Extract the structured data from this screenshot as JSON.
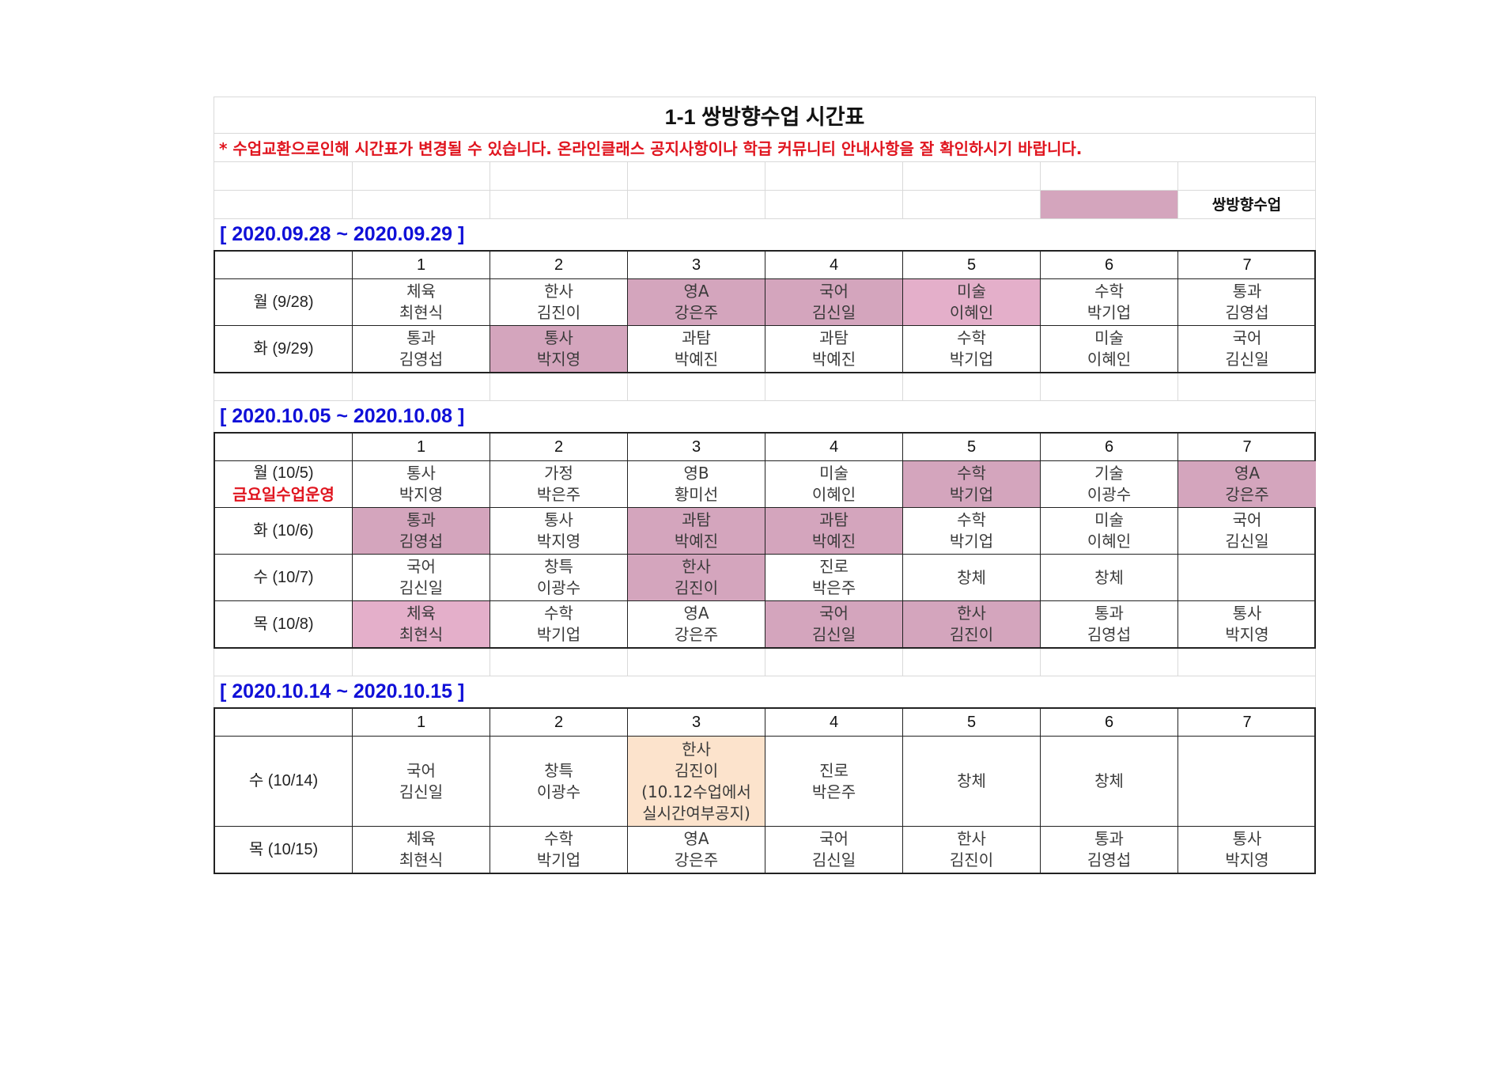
{
  "title": "1-1 쌍방향수업 시간표",
  "notice": "* 수업교환으로인해 시간표가 변경될 수 있습니다. 온라인클래스 공지사항이나 학급 커뮤니티 안내사항을 잘 확인하시기 바랍니다.",
  "legend": {
    "label": "쌍방향수업",
    "color": "#d4a5bd"
  },
  "periods": [
    "1",
    "2",
    "3",
    "4",
    "5",
    "6",
    "7"
  ],
  "weeks": [
    {
      "range": "[ 2020.09.28 ~ 2020.09.29 ]",
      "days": [
        {
          "day": "월 (9/28)",
          "note": "",
          "classes": [
            {
              "subject": "체육",
              "teacher": "최현식",
              "hl": ""
            },
            {
              "subject": "한사",
              "teacher": "김진이",
              "hl": ""
            },
            {
              "subject": "영A",
              "teacher": "강은주",
              "hl": "hl1"
            },
            {
              "subject": "국어",
              "teacher": "김신일",
              "hl": "hl1"
            },
            {
              "subject": "미술",
              "teacher": "이혜인",
              "hl": "hl2"
            },
            {
              "subject": "수학",
              "teacher": "박기업",
              "hl": ""
            },
            {
              "subject": "통과",
              "teacher": "김영섭",
              "hl": ""
            }
          ]
        },
        {
          "day": "화 (9/29)",
          "note": "",
          "classes": [
            {
              "subject": "통과",
              "teacher": "김영섭",
              "hl": ""
            },
            {
              "subject": "통사",
              "teacher": "박지영",
              "hl": "hl1"
            },
            {
              "subject": "과탐",
              "teacher": "박예진",
              "hl": ""
            },
            {
              "subject": "과탐",
              "teacher": "박예진",
              "hl": ""
            },
            {
              "subject": "수학",
              "teacher": "박기업",
              "hl": ""
            },
            {
              "subject": "미술",
              "teacher": "이혜인",
              "hl": ""
            },
            {
              "subject": "국어",
              "teacher": "김신일",
              "hl": ""
            }
          ]
        }
      ]
    },
    {
      "range": "[ 2020.10.05 ~ 2020.10.08 ]",
      "days": [
        {
          "day": "월 (10/5)",
          "note": "금요일수업운영",
          "classes": [
            {
              "subject": "통사",
              "teacher": "박지영",
              "hl": ""
            },
            {
              "subject": "가정",
              "teacher": "박은주",
              "hl": ""
            },
            {
              "subject": "영B",
              "teacher": "황미선",
              "hl": ""
            },
            {
              "subject": "미술",
              "teacher": "이혜인",
              "hl": ""
            },
            {
              "subject": "수학",
              "teacher": "박기업",
              "hl": "hl1"
            },
            {
              "subject": "기술",
              "teacher": "이광수",
              "hl": ""
            },
            {
              "subject": "영A",
              "teacher": "강은주",
              "hl": "hl1"
            }
          ]
        },
        {
          "day": "화 (10/6)",
          "note": "",
          "classes": [
            {
              "subject": "통과",
              "teacher": "김영섭",
              "hl": "hl1"
            },
            {
              "subject": "통사",
              "teacher": "박지영",
              "hl": ""
            },
            {
              "subject": "과탐",
              "teacher": "박예진",
              "hl": "hl1"
            },
            {
              "subject": "과탐",
              "teacher": "박예진",
              "hl": "hl1"
            },
            {
              "subject": "수학",
              "teacher": "박기업",
              "hl": ""
            },
            {
              "subject": "미술",
              "teacher": "이혜인",
              "hl": ""
            },
            {
              "subject": "국어",
              "teacher": "김신일",
              "hl": ""
            }
          ]
        },
        {
          "day": "수 (10/7)",
          "note": "",
          "classes": [
            {
              "subject": "국어",
              "teacher": "김신일",
              "hl": ""
            },
            {
              "subject": "창특",
              "teacher": "이광수",
              "hl": ""
            },
            {
              "subject": "한사",
              "teacher": "김진이",
              "hl": "hl1"
            },
            {
              "subject": "진로",
              "teacher": "박은주",
              "hl": ""
            },
            {
              "subject": "창체",
              "teacher": "",
              "hl": ""
            },
            {
              "subject": "창체",
              "teacher": "",
              "hl": ""
            },
            {
              "subject": "",
              "teacher": "",
              "hl": ""
            }
          ]
        },
        {
          "day": "목 (10/8)",
          "note": "",
          "classes": [
            {
              "subject": "체육",
              "teacher": "최현식",
              "hl": "hl2"
            },
            {
              "subject": "수학",
              "teacher": "박기업",
              "hl": ""
            },
            {
              "subject": "영A",
              "teacher": "강은주",
              "hl": ""
            },
            {
              "subject": "국어",
              "teacher": "김신일",
              "hl": "hl1"
            },
            {
              "subject": "한사",
              "teacher": "김진이",
              "hl": "hl1"
            },
            {
              "subject": "통과",
              "teacher": "김영섭",
              "hl": ""
            },
            {
              "subject": "통사",
              "teacher": "박지영",
              "hl": ""
            }
          ]
        }
      ]
    },
    {
      "range": "[ 2020.10.14 ~ 2020.10.15 ]",
      "days": [
        {
          "day": "수 (10/14)",
          "note": "",
          "tall": true,
          "classes": [
            {
              "subject": "국어",
              "teacher": "김신일",
              "hl": ""
            },
            {
              "subject": "창특",
              "teacher": "이광수",
              "hl": ""
            },
            {
              "subject": "한사",
              "teacher": "김진이",
              "extra1": "(10.12수업에서",
              "extra2": "실시간여부공지)",
              "hl": "hl3"
            },
            {
              "subject": "진로",
              "teacher": "박은주",
              "hl": ""
            },
            {
              "subject": "창체",
              "teacher": "",
              "hl": ""
            },
            {
              "subject": "창체",
              "teacher": "",
              "hl": ""
            },
            {
              "subject": "",
              "teacher": "",
              "hl": ""
            }
          ]
        },
        {
          "day": "목 (10/15)",
          "note": "",
          "classes": [
            {
              "subject": "체육",
              "teacher": "최현식",
              "hl": ""
            },
            {
              "subject": "수학",
              "teacher": "박기업",
              "hl": ""
            },
            {
              "subject": "영A",
              "teacher": "강은주",
              "hl": ""
            },
            {
              "subject": "국어",
              "teacher": "김신일",
              "hl": ""
            },
            {
              "subject": "한사",
              "teacher": "김진이",
              "hl": ""
            },
            {
              "subject": "통과",
              "teacher": "김영섭",
              "hl": ""
            },
            {
              "subject": "통사",
              "teacher": "박지영",
              "hl": ""
            }
          ]
        }
      ]
    }
  ]
}
